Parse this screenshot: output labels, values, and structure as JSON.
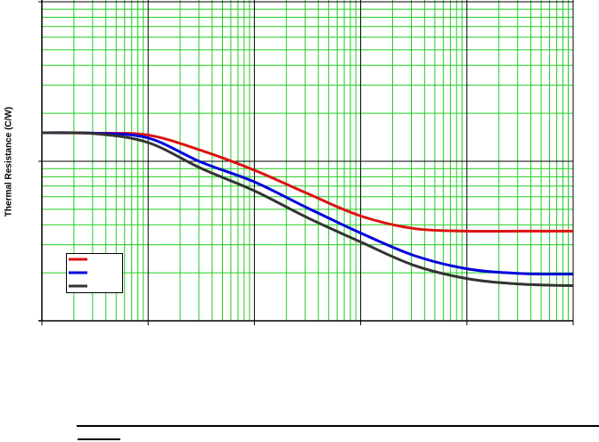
{
  "chart_data": {
    "type": "line",
    "title": "",
    "xlabel": "",
    "ylabel": "Thermal Resistance (C/W)",
    "x_scale": "log",
    "y_scale": "log",
    "xlim": [
      1,
      100000
    ],
    "ylim": [
      1,
      100
    ],
    "grid": true,
    "grid_color": "#22cc22",
    "legend": "bottom-left",
    "x": [
      1,
      3.16,
      10,
      31.6,
      100,
      316,
      1000,
      3162,
      10000,
      31623,
      100000
    ],
    "series": [
      {
        "color": "#dd1111",
        "values": [
          15.1,
          15.0,
          14.6,
          11.7,
          8.79,
          6.28,
          4.54,
          3.79,
          3.65,
          3.65,
          3.65
        ]
      },
      {
        "color": "#0000dd",
        "values": [
          15.1,
          15.0,
          14.0,
          9.87,
          7.43,
          5.1,
          3.55,
          2.57,
          2.12,
          1.98,
          1.96
        ]
      },
      {
        "color": "#333333",
        "values": [
          15.1,
          14.9,
          13.1,
          9.02,
          6.53,
          4.43,
          3.12,
          2.23,
          1.84,
          1.7,
          1.66
        ]
      }
    ]
  }
}
